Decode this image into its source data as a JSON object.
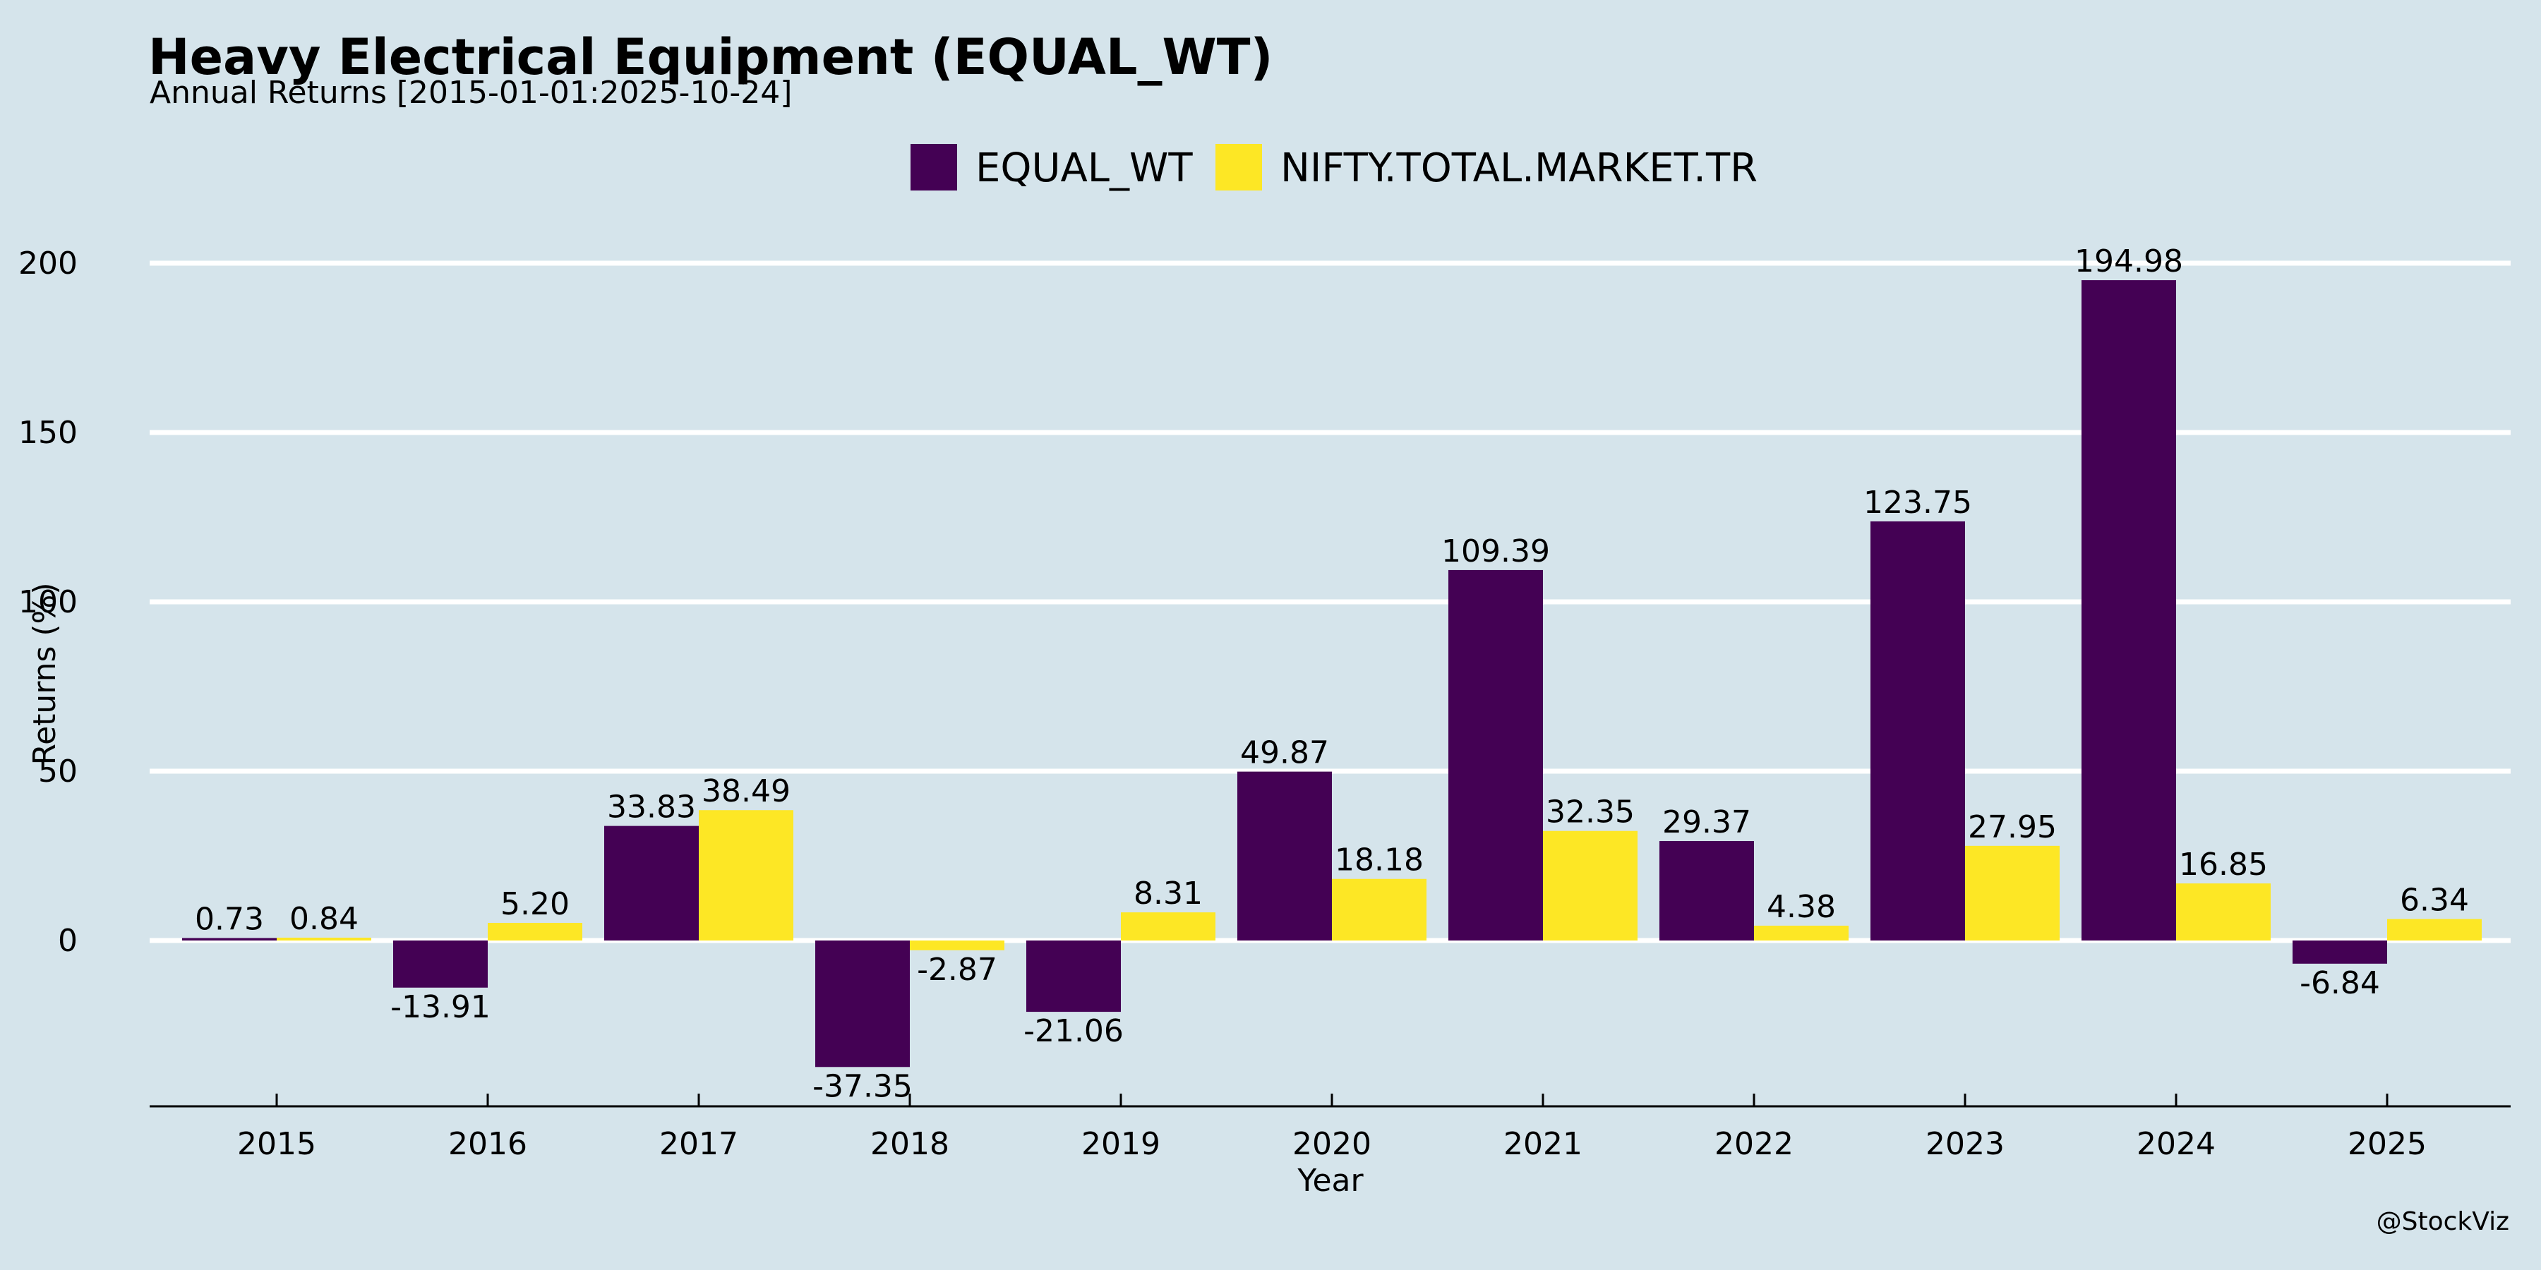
{
  "chart_data": {
    "type": "bar",
    "title": "Heavy Electrical Equipment (EQUAL_WT)",
    "subtitle": "Annual Returns [2015-01-01:2025-10-24]",
    "xlabel": "Year",
    "ylabel": "Returns (%)",
    "categories": [
      "2015",
      "2016",
      "2017",
      "2018",
      "2019",
      "2020",
      "2021",
      "2022",
      "2023",
      "2024",
      "2025"
    ],
    "series": [
      {
        "name": "EQUAL_WT",
        "color": "#440154",
        "values": [
          0.73,
          -13.91,
          33.83,
          -37.35,
          -21.06,
          49.87,
          109.39,
          29.37,
          123.75,
          194.98,
          -6.84
        ],
        "labels": [
          "0.73",
          "-13.91",
          "33.83",
          "-37.35",
          "-21.06",
          "49.87",
          "109.39",
          "29.37",
          "123.75",
          "194.98",
          "-6.84"
        ]
      },
      {
        "name": "NIFTY.TOTAL.MARKET.TR",
        "color": "#fde725",
        "values": [
          0.84,
          5.2,
          38.49,
          -2.87,
          8.31,
          18.18,
          32.35,
          4.38,
          27.95,
          16.85,
          6.34
        ],
        "labels": [
          "0.84",
          "5.20",
          "38.49",
          "-2.87",
          "8.31",
          "18.18",
          "32.35",
          "4.38",
          "27.95",
          "16.85",
          "6.34"
        ]
      }
    ],
    "yticks": [
      0,
      50,
      100,
      150,
      200
    ],
    "ylim": [
      -49,
      200
    ],
    "grid": true,
    "legend_position": "top-center",
    "credit": "@StockViz",
    "background": "#d5e4eb"
  }
}
